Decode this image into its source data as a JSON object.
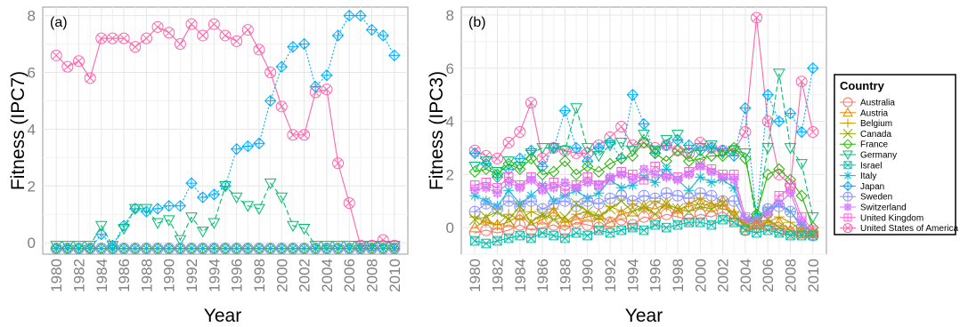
{
  "legend": {
    "title": "Country",
    "entries": [
      {
        "name": "Australia",
        "color": "#F8766D",
        "shape": "circle"
      },
      {
        "name": "Austria",
        "color": "#E18A00",
        "shape": "triangle"
      },
      {
        "name": "Belgium",
        "color": "#BE9C00",
        "shape": "plus"
      },
      {
        "name": "Canada",
        "color": "#8CAB00",
        "shape": "cross"
      },
      {
        "name": "France",
        "color": "#24B700",
        "shape": "diamond"
      },
      {
        "name": "Germany",
        "color": "#00BE70",
        "shape": "triangle-down"
      },
      {
        "name": "Israel",
        "color": "#00C1AB",
        "shape": "square-cross"
      },
      {
        "name": "Italy",
        "color": "#00BBDA",
        "shape": "asterisk"
      },
      {
        "name": "Japan",
        "color": "#00ACFC",
        "shape": "diamond-plus"
      },
      {
        "name": "Sweden",
        "color": "#8B93FF",
        "shape": "circle-plus"
      },
      {
        "name": "Switzerland",
        "color": "#D575FE",
        "shape": "star"
      },
      {
        "name": "United Kingdom",
        "color": "#F962DD",
        "shape": "square-plus"
      },
      {
        "name": "United States of America",
        "color": "#FF65AC",
        "shape": "circle-cross"
      }
    ]
  },
  "chart_data": [
    {
      "type": "line",
      "panel_label": "(a)",
      "xlabel": "Year",
      "ylabel": "Fitness (IPC7)",
      "ylim": [
        -0.4,
        8.3
      ],
      "yticks": [
        0,
        2,
        4,
        6,
        8
      ],
      "xticks": [
        "1980",
        "1982",
        "1984",
        "1986",
        "1988",
        "1990",
        "1992",
        "1994",
        "1996",
        "1998",
        "2000",
        "2002",
        "2004",
        "2006",
        "2008",
        "2010"
      ],
      "x": [
        1980,
        1981,
        1982,
        1983,
        1984,
        1985,
        1986,
        1987,
        1988,
        1989,
        1990,
        1991,
        1992,
        1993,
        1994,
        1995,
        1996,
        1997,
        1998,
        1999,
        2000,
        2001,
        2002,
        2003,
        2004,
        2005,
        2006,
        2007,
        2008,
        2009,
        2010
      ],
      "grid": true,
      "series": [
        {
          "name": "United States of America",
          "values": [
            6.6,
            6.2,
            6.4,
            5.8,
            7.2,
            7.2,
            7.2,
            6.9,
            7.2,
            7.6,
            7.4,
            7.0,
            7.7,
            7.3,
            7.7,
            7.3,
            7.1,
            7.5,
            6.8,
            6.0,
            4.8,
            3.8,
            3.8,
            5.3,
            5.4,
            2.8,
            1.4,
            -0.1,
            -0.1,
            0.1,
            -0.1
          ]
        },
        {
          "name": "Japan",
          "values": [
            -0.2,
            -0.2,
            -0.2,
            -0.2,
            0.3,
            -0.1,
            0.6,
            1.2,
            1.1,
            1.2,
            1.3,
            1.3,
            2.1,
            1.6,
            1.7,
            2.0,
            3.3,
            3.4,
            3.5,
            5.0,
            6.2,
            6.9,
            7.0,
            5.5,
            5.9,
            7.3,
            8.0,
            8.0,
            7.5,
            7.3,
            6.6
          ]
        },
        {
          "name": "Germany",
          "values": [
            -0.1,
            -0.1,
            -0.1,
            -0.1,
            0.6,
            -0.1,
            0.5,
            1.2,
            1.2,
            0.7,
            0.8,
            0.1,
            0.9,
            0.4,
            0.7,
            2.0,
            1.6,
            1.3,
            1.2,
            2.1,
            1.6,
            0.6,
            0.5,
            -0.1,
            -0.1,
            -0.1,
            -0.1,
            -0.1,
            -0.1,
            -0.1,
            -0.1
          ]
        },
        {
          "name": "France",
          "values": [
            -0.2,
            -0.2,
            -0.2,
            -0.2,
            -0.2,
            -0.2,
            -0.2,
            -0.2,
            -0.2,
            -0.2,
            -0.2,
            -0.2,
            -0.2,
            -0.2,
            -0.2,
            -0.2,
            -0.2,
            -0.2,
            -0.2,
            -0.2,
            -0.2,
            -0.2,
            -0.2,
            -0.2,
            -0.2,
            -0.2,
            -0.2,
            -0.2,
            -0.2,
            -0.2,
            -0.2
          ]
        },
        {
          "name": "Sweden",
          "values": [
            -0.2,
            -0.2,
            -0.2,
            -0.2,
            -0.2,
            -0.2,
            -0.2,
            -0.2,
            -0.2,
            -0.2,
            -0.2,
            -0.2,
            -0.2,
            -0.2,
            -0.2,
            -0.2,
            -0.2,
            -0.2,
            -0.2,
            -0.2,
            -0.2,
            -0.2,
            -0.2,
            -0.2,
            -0.2,
            -0.2,
            -0.2,
            -0.2,
            -0.2,
            -0.2,
            -0.2
          ]
        },
        {
          "name": "Italy",
          "values": [
            -0.2,
            -0.2,
            -0.2,
            -0.2,
            -0.2,
            -0.2,
            -0.2,
            -0.2,
            -0.2,
            -0.2,
            -0.2,
            -0.2,
            -0.2,
            -0.2,
            -0.2,
            -0.2,
            -0.2,
            -0.2,
            -0.2,
            -0.2,
            -0.2,
            -0.2,
            -0.2,
            -0.2,
            -0.2,
            -0.2,
            -0.2,
            -0.2,
            -0.2,
            -0.2,
            -0.2
          ]
        }
      ]
    },
    {
      "type": "line",
      "panel_label": "(b)",
      "xlabel": "Year",
      "ylabel": "Fitness (IPC3)",
      "ylim": [
        -1.0,
        8.3
      ],
      "yticks": [
        0,
        2,
        4,
        6,
        8
      ],
      "xticks": [
        "1980",
        "1982",
        "1984",
        "1986",
        "1988",
        "1990",
        "1992",
        "1994",
        "1996",
        "1998",
        "2000",
        "2002",
        "2004",
        "2006",
        "2008",
        "2010"
      ],
      "x": [
        1980,
        1981,
        1982,
        1983,
        1984,
        1985,
        1986,
        1987,
        1988,
        1989,
        1990,
        1991,
        1992,
        1993,
        1994,
        1995,
        1996,
        1997,
        1998,
        1999,
        2000,
        2001,
        2002,
        2003,
        2004,
        2005,
        2006,
        2007,
        2008,
        2009,
        2010
      ],
      "grid": true,
      "series": [
        {
          "name": "United States of America",
          "values": [
            2.9,
            2.7,
            2.6,
            3.2,
            3.6,
            4.7,
            2.6,
            3.0,
            2.9,
            2.8,
            2.8,
            3.1,
            3.4,
            3.8,
            3.1,
            3.2,
            3.0,
            3.1,
            2.9,
            2.8,
            3.2,
            3.0,
            2.9,
            2.9,
            3.6,
            7.9,
            4.0,
            2.0,
            1.6,
            5.5,
            3.6
          ]
        },
        {
          "name": "Japan",
          "values": [
            2.8,
            2.4,
            1.9,
            2.2,
            2.6,
            2.9,
            2.3,
            3.0,
            4.4,
            3.0,
            2.5,
            3.0,
            3.2,
            2.6,
            5.0,
            3.9,
            2.8,
            3.1,
            3.3,
            3.1,
            2.9,
            3.0,
            2.9,
            2.7,
            4.5,
            0.4,
            5.0,
            4.0,
            4.3,
            3.6,
            6.0
          ]
        },
        {
          "name": "Germany",
          "values": [
            2.3,
            2.5,
            2.1,
            2.5,
            2.3,
            2.8,
            3.0,
            3.0,
            2.9,
            4.5,
            3.0,
            2.7,
            3.1,
            3.2,
            2.9,
            3.5,
            2.9,
            3.3,
            3.5,
            2.8,
            3.0,
            3.1,
            2.8,
            2.9,
            2.8,
            0.2,
            3.0,
            5.8,
            3.0,
            2.4,
            0.4
          ]
        },
        {
          "name": "France",
          "values": [
            2.1,
            2.2,
            2.0,
            2.4,
            2.2,
            2.6,
            2.0,
            2.1,
            2.5,
            2.0,
            2.3,
            2.1,
            2.4,
            2.6,
            2.7,
            3.2,
            2.8,
            2.5,
            2.9,
            2.5,
            2.6,
            2.7,
            2.7,
            3.0,
            2.6,
            0.5,
            2.0,
            2.2,
            1.8,
            1.2,
            0.0
          ]
        },
        {
          "name": "Italy",
          "values": [
            1.2,
            1.0,
            0.8,
            1.4,
            0.9,
            1.2,
            1.6,
            1.0,
            1.2,
            1.4,
            1.1,
            1.3,
            1.8,
            1.5,
            1.6,
            1.9,
            1.7,
            2.2,
            1.8,
            1.4,
            1.9,
            1.7,
            1.8,
            1.5,
            0.3,
            0.4,
            0.7,
            0.9,
            0.6,
            0.1,
            -0.2
          ]
        },
        {
          "name": "United Kingdom",
          "values": [
            1.6,
            1.7,
            1.5,
            1.9,
            1.6,
            1.9,
            1.5,
            1.7,
            1.4,
            1.6,
            1.9,
            1.6,
            1.8,
            2.1,
            2.0,
            1.8,
            2.3,
            2.0,
            1.9,
            2.1,
            2.4,
            2.2,
            2.0,
            2.0,
            0.4,
            0.2,
            0.6,
            1.2,
            1.5,
            0.4,
            -0.1
          ]
        },
        {
          "name": "Switzerland",
          "values": [
            1.4,
            1.5,
            1.3,
            1.7,
            1.5,
            1.8,
            1.4,
            1.5,
            1.7,
            1.5,
            1.7,
            1.6,
            1.9,
            2.0,
            1.8,
            2.2,
            2.0,
            1.9,
            1.8,
            2.0,
            2.3,
            2.1,
            1.9,
            1.8,
            0.2,
            0.3,
            0.5,
            0.9,
            1.3,
            0.2,
            -0.2
          ]
        },
        {
          "name": "Sweden",
          "values": [
            0.6,
            0.9,
            0.7,
            1.0,
            0.8,
            1.0,
            0.7,
            0.9,
            1.0,
            0.8,
            1.0,
            0.9,
            1.1,
            1.2,
            1.0,
            1.2,
            1.1,
            1.3,
            1.2,
            1.1,
            1.3,
            1.2,
            1.0,
            1.0,
            0.3,
            0.2,
            0.7,
            0.8,
            0.6,
            0.0,
            -0.3
          ]
        },
        {
          "name": "Belgium",
          "values": [
            0.4,
            0.2,
            0.1,
            0.5,
            0.3,
            0.6,
            0.4,
            0.7,
            0.2,
            0.5,
            0.6,
            0.3,
            0.8,
            0.6,
            0.9,
            0.7,
            1.0,
            0.8,
            0.6,
            0.9,
            1.1,
            0.9,
            0.7,
            0.6,
            0.1,
            0.0,
            0.2,
            0.4,
            0.2,
            -0.1,
            -0.2
          ]
        },
        {
          "name": "Austria",
          "values": [
            0.0,
            0.3,
            0.1,
            0.2,
            0.5,
            0.1,
            0.3,
            0.6,
            0.2,
            0.3,
            0.4,
            0.5,
            0.2,
            0.5,
            0.6,
            0.8,
            0.7,
            0.9,
            0.7,
            0.8,
            0.9,
            0.8,
            1.0,
            0.5,
            0.0,
            0.1,
            0.1,
            0.2,
            -0.1,
            -0.2,
            -0.2
          ]
        },
        {
          "name": "Canada",
          "values": [
            0.3,
            0.4,
            0.6,
            0.3,
            0.8,
            0.2,
            0.5,
            0.3,
            0.4,
            0.9,
            0.6,
            0.4,
            0.7,
            1.0,
            0.6,
            0.8,
            0.5,
            0.9,
            0.7,
            0.6,
            0.8,
            0.7,
            0.9,
            0.4,
            0.1,
            0.2,
            0.3,
            0.0,
            -0.1,
            -0.2,
            -0.2
          ]
        },
        {
          "name": "Australia",
          "values": [
            -0.2,
            -0.1,
            -0.2,
            -0.1,
            0.1,
            -0.1,
            0.0,
            0.1,
            -0.1,
            0.2,
            0.1,
            0.0,
            0.2,
            0.3,
            0.1,
            0.4,
            0.3,
            0.5,
            0.4,
            0.3,
            0.5,
            0.4,
            0.6,
            0.3,
            -0.1,
            0.0,
            0.1,
            -0.1,
            -0.2,
            -0.2,
            -0.2
          ]
        },
        {
          "name": "Israel",
          "values": [
            -0.5,
            -0.6,
            -0.5,
            -0.4,
            -0.3,
            -0.4,
            -0.2,
            -0.3,
            -0.4,
            -0.2,
            -0.3,
            -0.1,
            -0.2,
            -0.1,
            0.0,
            -0.1,
            0.1,
            0.0,
            0.1,
            0.2,
            0.2,
            0.1,
            0.3,
            0.2,
            -0.1,
            -0.2,
            -0.1,
            -0.2,
            -0.3,
            -0.3,
            -0.3
          ]
        }
      ]
    }
  ]
}
